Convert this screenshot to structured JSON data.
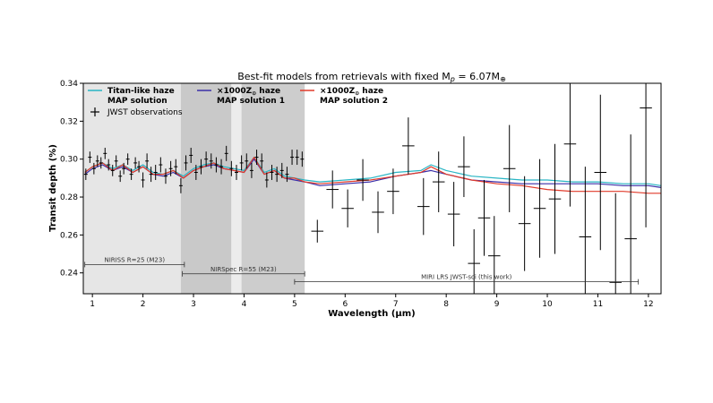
{
  "chart_data": {
    "type": "line",
    "title": "Best-fit models from retrievals with fixed M",
    "title_sub": "p",
    "title_rest": " = 6.07M",
    "title_sub2": "⊕",
    "xlabel": "Wavelength (μm)",
    "ylabel": "Transit depth (%)",
    "xlim": [
      0.82,
      12.25
    ],
    "ylim": [
      0.229,
      0.34
    ],
    "xticks": [
      1,
      2,
      3,
      4,
      5,
      6,
      7,
      8,
      9,
      10,
      11,
      12
    ],
    "yticks": [
      0.24,
      0.26,
      0.28,
      0.3,
      0.32,
      0.34
    ],
    "ytick_labels": [
      "0.24",
      "0.26",
      "0.28",
      "0.30",
      "0.32",
      "0.34"
    ],
    "grid": false,
    "legend": [
      {
        "label_line1": "Titan-like haze",
        "label_line2": "MAP solution",
        "color": "#29b5c4",
        "kind": "line"
      },
      {
        "label_line1": "×1000Z",
        "label_sub": "⊙",
        "label_after": " haze",
        "label_line2": "MAP solution 1",
        "color": "#3a2fa8",
        "kind": "line"
      },
      {
        "label_line1": "×1000Z",
        "label_sub": "⊙",
        "label_after": " haze",
        "label_line2": "MAP solution 2",
        "color": "#e03a2a",
        "kind": "line"
      },
      {
        "label_line1": "JWST observations",
        "color": "#000000",
        "kind": "errorbar"
      }
    ],
    "shaded_bands": [
      {
        "x0": 0.82,
        "x1": 2.75,
        "shade": "#e6e6e6"
      },
      {
        "x0": 2.75,
        "x1": 3.75,
        "shade": "#c9c9c9"
      },
      {
        "x0": 3.75,
        "x1": 3.95,
        "shade": "#ececec"
      },
      {
        "x0": 3.95,
        "x1": 5.2,
        "shade": "#cdcdcd"
      }
    ],
    "instrument_ranges": [
      {
        "label": "NIRISS R=25 (M23)",
        "x0": 0.85,
        "x1": 2.82,
        "y": 0.2444
      },
      {
        "label": "NIRSpec R=55 (M23)",
        "x0": 2.78,
        "x1": 5.2,
        "y": 0.2395
      },
      {
        "label": "MIRI LRS JWST-sci (this work)",
        "x0": 5.0,
        "x1": 11.8,
        "y": 0.2353
      }
    ],
    "series": [
      {
        "name": "Titan-like haze MAP solution",
        "color": "#29b5c4",
        "x": [
          0.85,
          1.0,
          1.2,
          1.4,
          1.6,
          1.8,
          2.0,
          2.2,
          2.4,
          2.6,
          2.8,
          3.0,
          3.2,
          3.4,
          3.6,
          3.8,
          4.0,
          4.2,
          4.4,
          4.6,
          4.8,
          5.0,
          5.2,
          5.5,
          6.0,
          6.5,
          7.0,
          7.5,
          7.7,
          8.0,
          8.5,
          9.0,
          9.5,
          10.0,
          10.5,
          11.0,
          11.5,
          12.0,
          12.25
        ],
        "y": [
          0.293,
          0.296,
          0.298,
          0.295,
          0.297,
          0.294,
          0.297,
          0.293,
          0.292,
          0.294,
          0.291,
          0.295,
          0.297,
          0.298,
          0.296,
          0.295,
          0.294,
          0.301,
          0.293,
          0.295,
          0.291,
          0.29,
          0.289,
          0.288,
          0.289,
          0.29,
          0.293,
          0.294,
          0.297,
          0.294,
          0.291,
          0.29,
          0.289,
          0.289,
          0.288,
          0.288,
          0.287,
          0.287,
          0.286
        ]
      },
      {
        "name": "×1000Z⊙ haze MAP solution 1",
        "color": "#3a2fa8",
        "x": [
          0.85,
          1.0,
          1.2,
          1.4,
          1.6,
          1.8,
          2.0,
          2.2,
          2.4,
          2.6,
          2.8,
          3.0,
          3.2,
          3.4,
          3.6,
          3.8,
          4.0,
          4.2,
          4.4,
          4.6,
          4.8,
          5.0,
          5.2,
          5.5,
          6.0,
          6.5,
          7.0,
          7.5,
          7.7,
          8.0,
          8.5,
          9.0,
          9.5,
          10.0,
          10.5,
          11.0,
          11.5,
          12.0,
          12.25
        ],
        "y": [
          0.292,
          0.295,
          0.297,
          0.294,
          0.296,
          0.293,
          0.296,
          0.292,
          0.291,
          0.293,
          0.29,
          0.294,
          0.296,
          0.297,
          0.295,
          0.294,
          0.293,
          0.3,
          0.292,
          0.294,
          0.29,
          0.289,
          0.288,
          0.286,
          0.287,
          0.288,
          0.291,
          0.293,
          0.294,
          0.292,
          0.289,
          0.288,
          0.287,
          0.287,
          0.287,
          0.287,
          0.286,
          0.286,
          0.285
        ]
      },
      {
        "name": "×1000Z⊙ haze MAP solution 2",
        "color": "#e03a2a",
        "x": [
          0.85,
          1.0,
          1.2,
          1.4,
          1.6,
          1.8,
          2.0,
          2.2,
          2.4,
          2.6,
          2.8,
          3.0,
          3.2,
          3.4,
          3.6,
          3.8,
          4.0,
          4.2,
          4.4,
          4.6,
          4.8,
          5.0,
          5.2,
          5.5,
          6.0,
          6.5,
          7.0,
          7.5,
          7.7,
          8.0,
          8.5,
          9.0,
          9.5,
          10.0,
          10.5,
          11.0,
          11.5,
          12.0,
          12.25
        ],
        "y": [
          0.293,
          0.296,
          0.298,
          0.294,
          0.297,
          0.293,
          0.296,
          0.292,
          0.292,
          0.294,
          0.29,
          0.294,
          0.296,
          0.298,
          0.295,
          0.294,
          0.293,
          0.301,
          0.292,
          0.294,
          0.29,
          0.29,
          0.288,
          0.287,
          0.288,
          0.289,
          0.291,
          0.293,
          0.296,
          0.292,
          0.289,
          0.287,
          0.286,
          0.284,
          0.283,
          0.283,
          0.283,
          0.282,
          0.282
        ]
      }
    ],
    "observations": {
      "name": "JWST observations",
      "color": "#000000",
      "x": [
        0.87,
        0.95,
        1.03,
        1.1,
        1.17,
        1.25,
        1.32,
        1.4,
        1.47,
        1.55,
        1.62,
        1.7,
        1.77,
        1.85,
        1.92,
        2.0,
        2.08,
        2.16,
        2.25,
        2.35,
        2.45,
        2.55,
        2.65,
        2.75,
        2.85,
        2.95,
        3.05,
        3.15,
        3.25,
        3.35,
        3.45,
        3.55,
        3.65,
        3.75,
        3.85,
        3.95,
        4.05,
        4.15,
        4.25,
        4.35,
        4.45,
        4.55,
        4.65,
        4.75,
        4.85,
        4.95,
        5.05,
        5.15,
        5.45,
        5.75,
        6.05,
        6.35,
        6.65,
        6.95,
        7.25,
        7.55,
        7.85,
        8.15,
        8.35,
        8.55,
        8.75,
        8.95,
        9.25,
        9.55,
        9.85,
        10.15,
        10.45,
        10.75,
        11.05,
        11.35,
        11.65,
        11.95
      ],
      "y": [
        0.292,
        0.301,
        0.295,
        0.299,
        0.298,
        0.303,
        0.297,
        0.294,
        0.299,
        0.291,
        0.295,
        0.3,
        0.292,
        0.298,
        0.296,
        0.289,
        0.299,
        0.292,
        0.293,
        0.297,
        0.291,
        0.295,
        0.296,
        0.286,
        0.298,
        0.302,
        0.293,
        0.296,
        0.3,
        0.299,
        0.297,
        0.296,
        0.303,
        0.295,
        0.293,
        0.298,
        0.299,
        0.294,
        0.301,
        0.299,
        0.289,
        0.293,
        0.292,
        0.294,
        0.292,
        0.301,
        0.301,
        0.3,
        0.262,
        0.284,
        0.274,
        0.289,
        0.272,
        0.283,
        0.307,
        0.275,
        0.288,
        0.271,
        0.296,
        0.245,
        0.269,
        0.249,
        0.295,
        0.266,
        0.274,
        0.279,
        0.308,
        0.259,
        0.293,
        0.235,
        0.258,
        0.327
      ],
      "yerr": [
        0.003,
        0.003,
        0.003,
        0.003,
        0.003,
        0.003,
        0.003,
        0.003,
        0.003,
        0.003,
        0.003,
        0.003,
        0.003,
        0.003,
        0.003,
        0.004,
        0.004,
        0.004,
        0.004,
        0.004,
        0.004,
        0.004,
        0.004,
        0.004,
        0.004,
        0.004,
        0.004,
        0.004,
        0.004,
        0.004,
        0.004,
        0.004,
        0.004,
        0.004,
        0.004,
        0.004,
        0.004,
        0.004,
        0.004,
        0.004,
        0.004,
        0.004,
        0.004,
        0.004,
        0.004,
        0.004,
        0.004,
        0.004,
        0.006,
        0.01,
        0.01,
        0.011,
        0.011,
        0.012,
        0.015,
        0.015,
        0.016,
        0.017,
        0.016,
        0.018,
        0.02,
        0.021,
        0.023,
        0.025,
        0.026,
        0.029,
        0.033,
        0.037,
        0.041,
        0.047,
        0.055,
        0.063
      ],
      "xerr": 0.12
    }
  }
}
